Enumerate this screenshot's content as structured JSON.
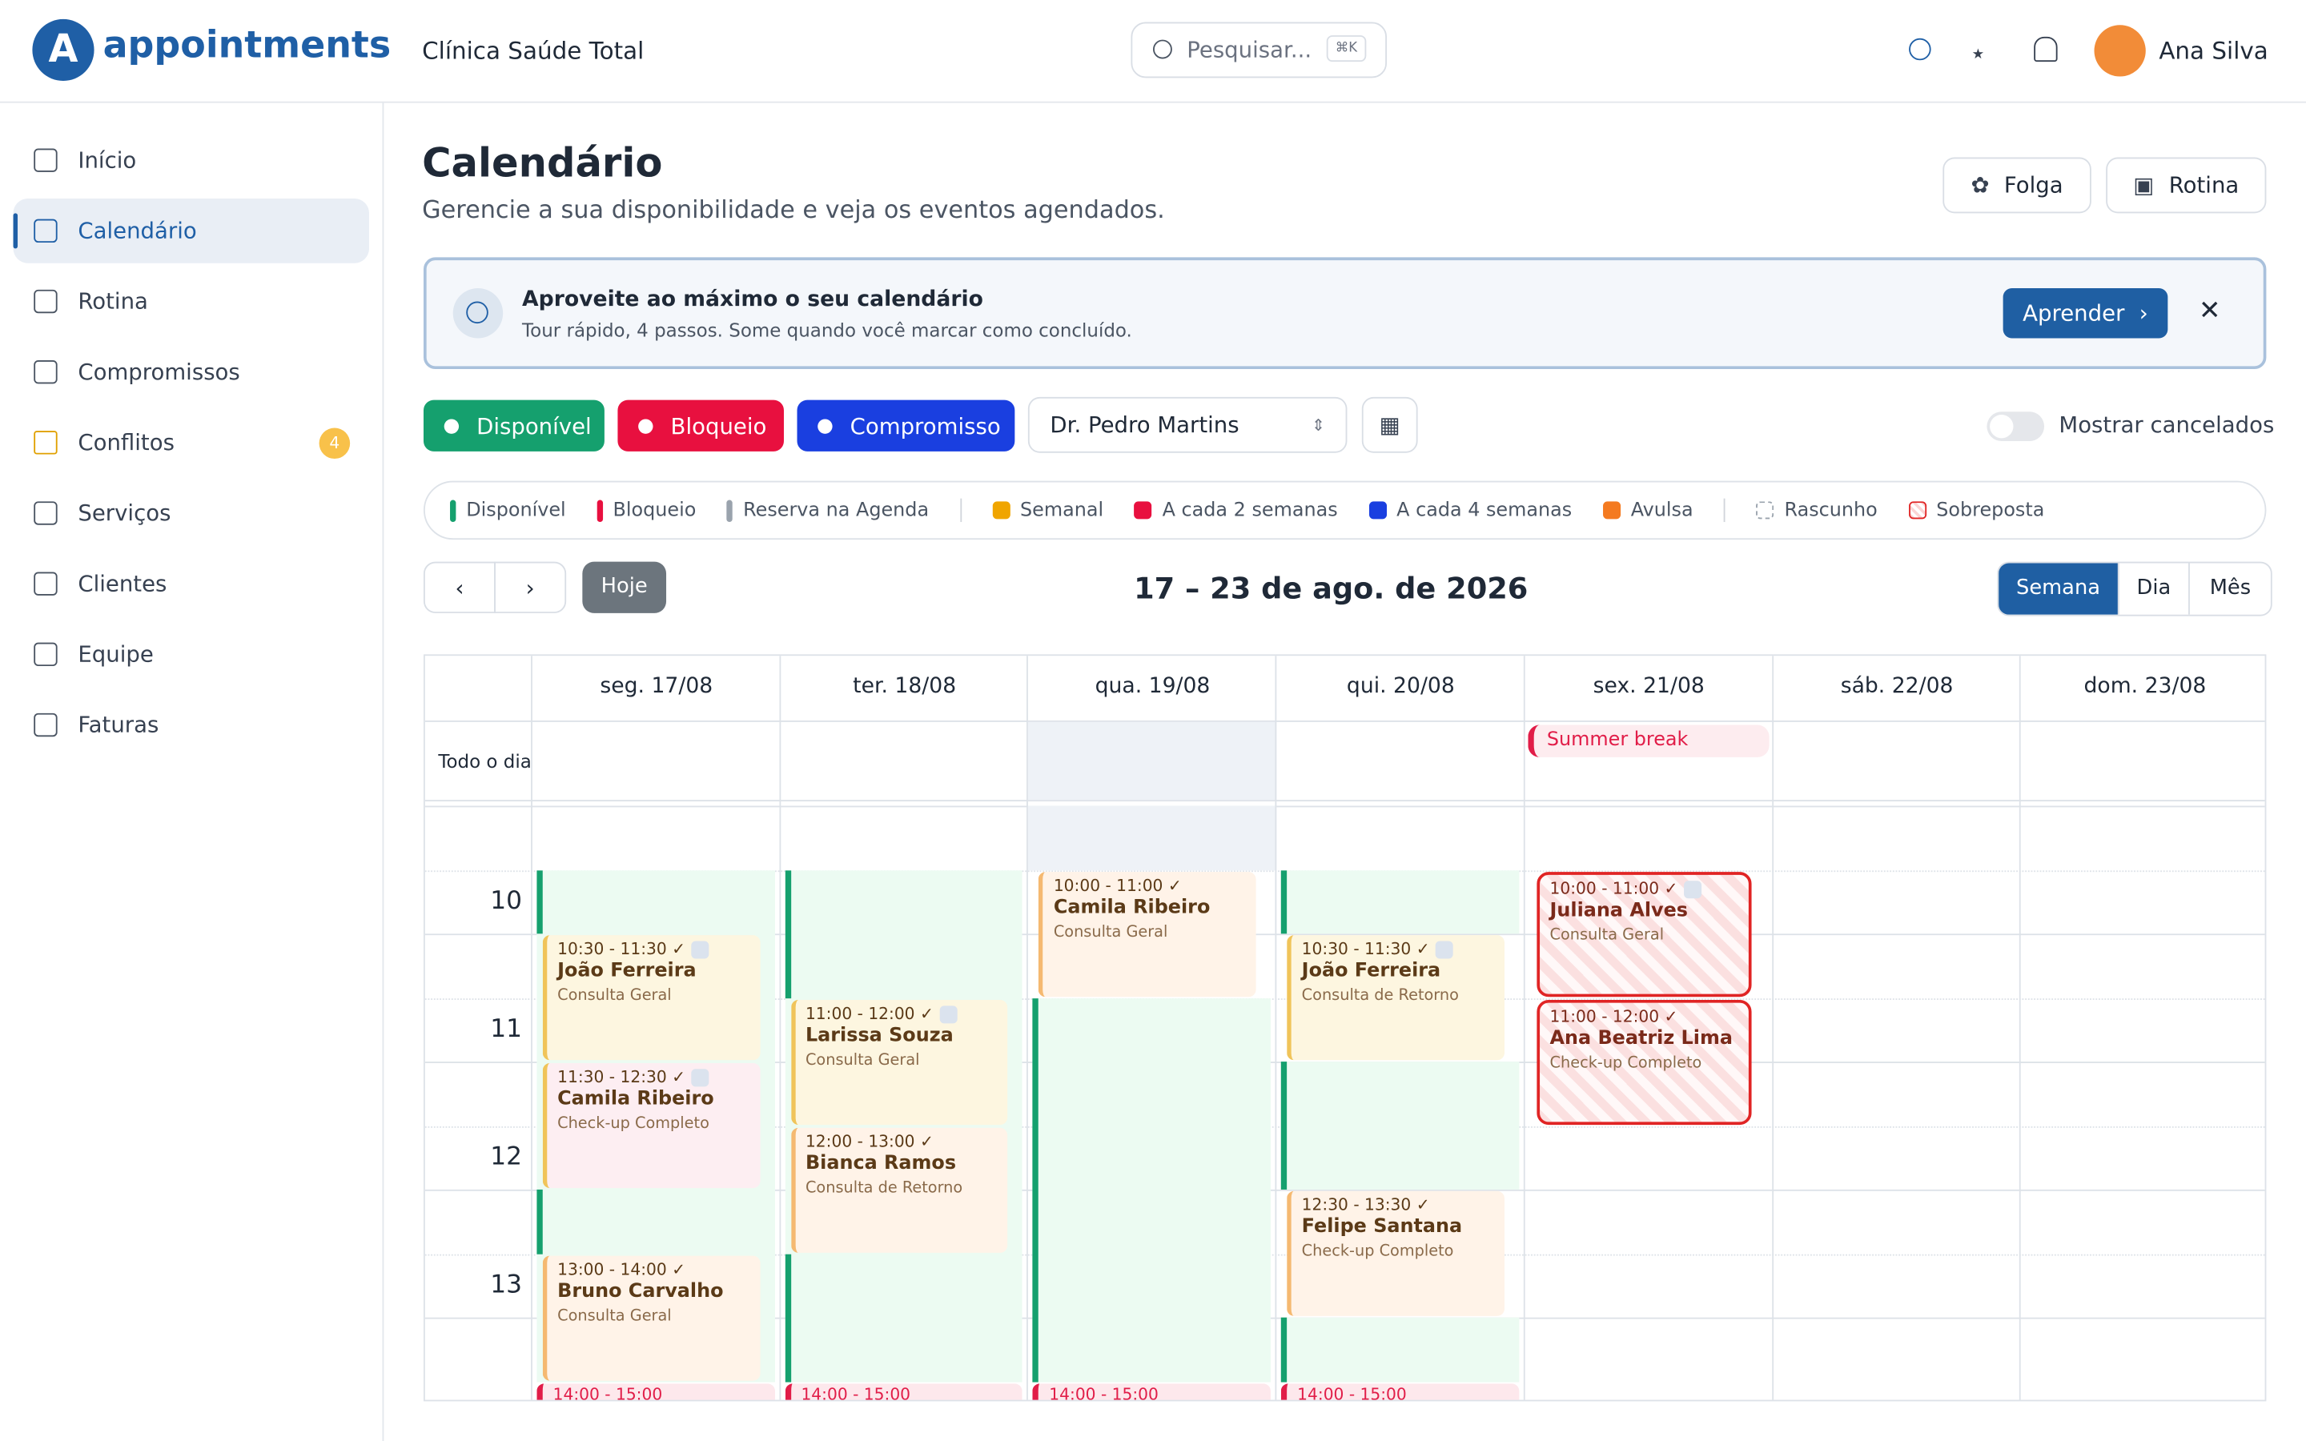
{
  "brand": "appointments",
  "header": {
    "clinic": "Clínica Saúde Total",
    "search": "Pesquisar...",
    "shortcut": "⌘K",
    "user": "Ana Silva"
  },
  "sidebar": [
    {
      "label": "Início"
    },
    {
      "label": "Calendário",
      "active": true
    },
    {
      "label": "Rotina"
    },
    {
      "label": "Compromissos"
    },
    {
      "label": "Conflitos",
      "badge": 4
    },
    {
      "label": "Serviços"
    },
    {
      "label": "Clientes"
    },
    {
      "label": "Equipe"
    },
    {
      "label": "Faturas"
    }
  ],
  "page": {
    "title": "Calendário",
    "subtitle": "Gerencie a sua disponibilidade e veja os eventos agendados.",
    "buttons": [
      "Folga",
      "Rotina"
    ]
  },
  "banner": {
    "title": "Aproveite ao máximo o seu calendário",
    "text": "Tour rápido, 4 passos. Some quando você marcar como concluído.",
    "action": "Aprender"
  },
  "filters": [
    {
      "label": "Disponível",
      "color": "#15a06e"
    },
    {
      "label": "Bloqueio",
      "color": "#e8103f"
    },
    {
      "label": "Compromisso",
      "color": "#1a3fe0"
    }
  ],
  "provider": "Dr. Pedro Martins",
  "toggle": "Mostrar cancelados",
  "legend": [
    [
      {
        "label": "Disponível",
        "color": "#15a06e",
        "style": "bar"
      },
      {
        "label": "Bloqueio",
        "color": "#e8103f",
        "style": "bar"
      },
      {
        "label": "Reserva na Agenda",
        "color": "#9aa3ad",
        "style": "bar"
      }
    ],
    [
      {
        "label": "Semanal",
        "color": "#f0a500",
        "style": "square"
      },
      {
        "label": "A cada 2 semanas",
        "color": "#e8103f",
        "style": "square"
      },
      {
        "label": "A cada 4 semanas",
        "color": "#1a3fe0",
        "style": "square"
      },
      {
        "label": "Avulsa",
        "color": "#f47a20",
        "style": "square"
      }
    ],
    [
      {
        "label": "Rascunho",
        "color": "#9aa3ad",
        "style": "dashed"
      },
      {
        "label": "Sobreposta",
        "color": "#e02424",
        "style": "hatched"
      }
    ]
  ],
  "nav": {
    "today": "Hoje",
    "range": "17 – 23 de ago. de 2026",
    "views": [
      "Semana",
      "Dia",
      "Mês"
    ]
  },
  "calendar": {
    "all_day": "Todo o dia",
    "hours": [
      10,
      11,
      12,
      13
    ],
    "days": [
      {
        "label": "seg. 17/08",
        "events": [
          {
            "time": "10:30 - 11:30 ✓",
            "name": "João Ferreira",
            "service": "Consulta Geral",
            "color": "#f0c45a",
            "fill": "#fdf6e0",
            "recurring": true
          },
          {
            "time": "11:30 - 12:30 ✓",
            "name": "Camila Ribeiro",
            "service": "Check-up Completo",
            "color": "#f0c45a",
            "fill": "#fdeef2",
            "recurring": true
          },
          {
            "time": "13:00 - 14:00 ✓",
            "name": "Bruno Carvalho",
            "service": "Consulta Geral",
            "color": "#f5b971",
            "fill": "#fff3e8"
          },
          {
            "time": "14:00 - 15:00",
            "color": "#e11d48",
            "fill": "#fde8ec"
          }
        ]
      },
      {
        "label": "ter. 18/08",
        "events": [
          {
            "time": "11:00 - 12:00 ✓",
            "name": "Larissa Souza",
            "service": "Consulta Geral",
            "color": "#f0c45a",
            "fill": "#fdf6e0",
            "recurring": true
          },
          {
            "time": "12:00 - 13:00 ✓",
            "name": "Bianca Ramos",
            "service": "Consulta de Retorno",
            "color": "#f5b971",
            "fill": "#fff3e8"
          },
          {
            "time": "14:00 - 15:00",
            "color": "#e11d48",
            "fill": "#fde8ec"
          }
        ]
      },
      {
        "label": "qua. 19/08",
        "today": true,
        "events": [
          {
            "time": "10:00 - 11:00 ✓",
            "name": "Camila Ribeiro",
            "service": "Consulta Geral",
            "color": "#f5b971",
            "fill": "#fff3e8"
          },
          {
            "time": "14:00 - 15:00",
            "color": "#e11d48",
            "fill": "#fde8ec"
          }
        ]
      },
      {
        "label": "qui. 20/08",
        "events": [
          {
            "time": "10:30 - 11:30 ✓",
            "name": "João Ferreira",
            "service": "Consulta de Retorno",
            "color": "#f0c45a",
            "fill": "#fdf6e0",
            "recurring": true
          },
          {
            "time": "12:30 - 13:30 ✓",
            "name": "Felipe Santana",
            "service": "Check-up Completo",
            "color": "#f5b971",
            "fill": "#fff3e8"
          },
          {
            "time": "14:00 - 15:00",
            "color": "#e11d48",
            "fill": "#fde8ec"
          }
        ]
      },
      {
        "label": "sex. 21/08",
        "all_day_events": [
          "Summer break"
        ],
        "events": [
          {
            "time": "10:00 - 11:00 ✓",
            "name": "Juliana Alves",
            "service": "Consulta Geral",
            "overlap": true,
            "recurring": true
          },
          {
            "time": "11:00 - 12:00 ✓",
            "name": "Ana Beatriz Lima",
            "service": "Check-up Completo",
            "overlap": true
          }
        ]
      },
      {
        "label": "sáb. 22/08",
        "events": []
      },
      {
        "label": "dom. 23/08",
        "events": []
      }
    ]
  }
}
